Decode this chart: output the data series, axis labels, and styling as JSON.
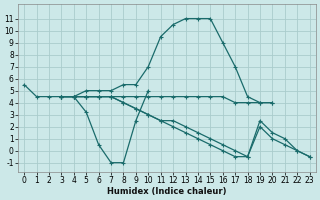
{
  "background_color": "#cce8e8",
  "grid_color": "#aacccc",
  "line_color": "#1a6b6b",
  "xlabel": "Humidex (Indice chaleur)",
  "xlim": [
    -0.5,
    23.5
  ],
  "ylim": [
    -1.8,
    12.2
  ],
  "xtick_vals": [
    0,
    1,
    2,
    3,
    4,
    5,
    6,
    7,
    8,
    9,
    10,
    11,
    12,
    13,
    14,
    15,
    16,
    17,
    18,
    19,
    20,
    21,
    22,
    23
  ],
  "ytick_vals": [
    -1,
    0,
    1,
    2,
    3,
    4,
    5,
    6,
    7,
    8,
    9,
    10,
    11
  ],
  "fontsize": 5.5,
  "line1_x": [
    0,
    1,
    2,
    3,
    4,
    5,
    6,
    7,
    8,
    9,
    10,
    11,
    12,
    13,
    14,
    15,
    16,
    17,
    18,
    19,
    20
  ],
  "line1_y": [
    5.5,
    4.5,
    4.5,
    4.5,
    4.5,
    5.0,
    5.0,
    5.0,
    5.5,
    5.5,
    7.0,
    9.5,
    10.5,
    11.0,
    11.0,
    11.0,
    9.0,
    7.0,
    4.5,
    4.0,
    4.0
  ],
  "line2_x": [
    3,
    4,
    5,
    6,
    7,
    8,
    9,
    10
  ],
  "line2_y": [
    4.5,
    4.5,
    3.2,
    0.5,
    -1.0,
    -1.0,
    2.5,
    5.0
  ],
  "line3_x": [
    3,
    4,
    5,
    6,
    7,
    8,
    9,
    10,
    11,
    12,
    13,
    14,
    15,
    16,
    17,
    18,
    19,
    20
  ],
  "line3_y": [
    4.5,
    4.5,
    4.5,
    4.5,
    4.5,
    4.5,
    4.5,
    4.5,
    4.5,
    4.5,
    4.5,
    4.5,
    4.5,
    4.5,
    4.0,
    4.0,
    4.0,
    4.0
  ],
  "line4_x": [
    3,
    4,
    5,
    6,
    7,
    8,
    9,
    10,
    11,
    12,
    13,
    14,
    15,
    16,
    17,
    18,
    19,
    20,
    21,
    22,
    23
  ],
  "line4_y": [
    4.5,
    4.5,
    4.5,
    4.5,
    4.5,
    4.0,
    3.5,
    3.0,
    2.5,
    2.5,
    2.0,
    1.5,
    1.0,
    0.5,
    0.0,
    -0.5,
    2.5,
    1.5,
    1.0,
    0.0,
    -0.5
  ],
  "line5_x": [
    3,
    4,
    5,
    6,
    7,
    8,
    9,
    10,
    11,
    12,
    13,
    14,
    15,
    16,
    17,
    18,
    19,
    20,
    21,
    22,
    23
  ],
  "line5_y": [
    4.5,
    4.5,
    4.5,
    4.5,
    4.5,
    4.0,
    3.5,
    3.0,
    2.5,
    2.0,
    1.5,
    1.0,
    0.5,
    0.0,
    -0.5,
    -0.5,
    2.0,
    1.0,
    0.5,
    -0.0,
    -0.5
  ]
}
